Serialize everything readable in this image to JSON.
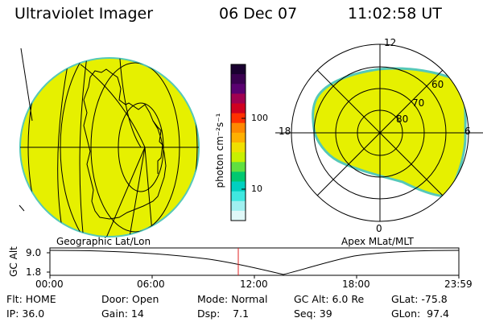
{
  "header": {
    "title": "Ultraviolet Imager",
    "date": "06 Dec 07",
    "time": "11:02:58 UT"
  },
  "colors": {
    "emission_fill": "#e6f000",
    "limb_edge": "#55c8b8",
    "line": "#000000",
    "time_marker": "#e02020"
  },
  "left_panel": {
    "caption": "Geographic Lat/Lon"
  },
  "colorbar": {
    "unit_label": "photon cm⁻²s⁻¹",
    "tick_labels": [
      "100",
      "10"
    ],
    "colors": [
      "#1a0030",
      "#3a0050",
      "#5a0070",
      "#a00050",
      "#d00020",
      "#ff3000",
      "#ff8800",
      "#ffb000",
      "#f0e000",
      "#c8f000",
      "#60e040",
      "#00c870",
      "#00d0c0",
      "#40e8e0",
      "#a0f0f0",
      "#e0f8f8"
    ]
  },
  "right_panel": {
    "caption": "Apex MLat/MLT",
    "mlt_labels": {
      "top": "12",
      "left": "18",
      "right": "6",
      "bottom": "0"
    },
    "mlat_labels": [
      "60",
      "70",
      "80"
    ]
  },
  "altitude_plot": {
    "ylabel": "GC Alt",
    "y_ticks": [
      "9.0",
      "1.8"
    ],
    "x_ticks": [
      "00:00",
      "06:00",
      "12:00",
      "18:00",
      "23:59"
    ]
  },
  "footer": {
    "row1": {
      "flt": "Flt: HOME",
      "door": "Door: Open",
      "mode": "Mode: Normal",
      "gcalt": "GC Alt: 6.0 Re",
      "glat": "GLat: -75.8"
    },
    "row2": {
      "ip": "IP: 36.0",
      "gain": "Gain: 14",
      "dsp": "Dsp:    7.1",
      "seq": "Seq: 39",
      "glon": "GLon:  97.4"
    }
  }
}
